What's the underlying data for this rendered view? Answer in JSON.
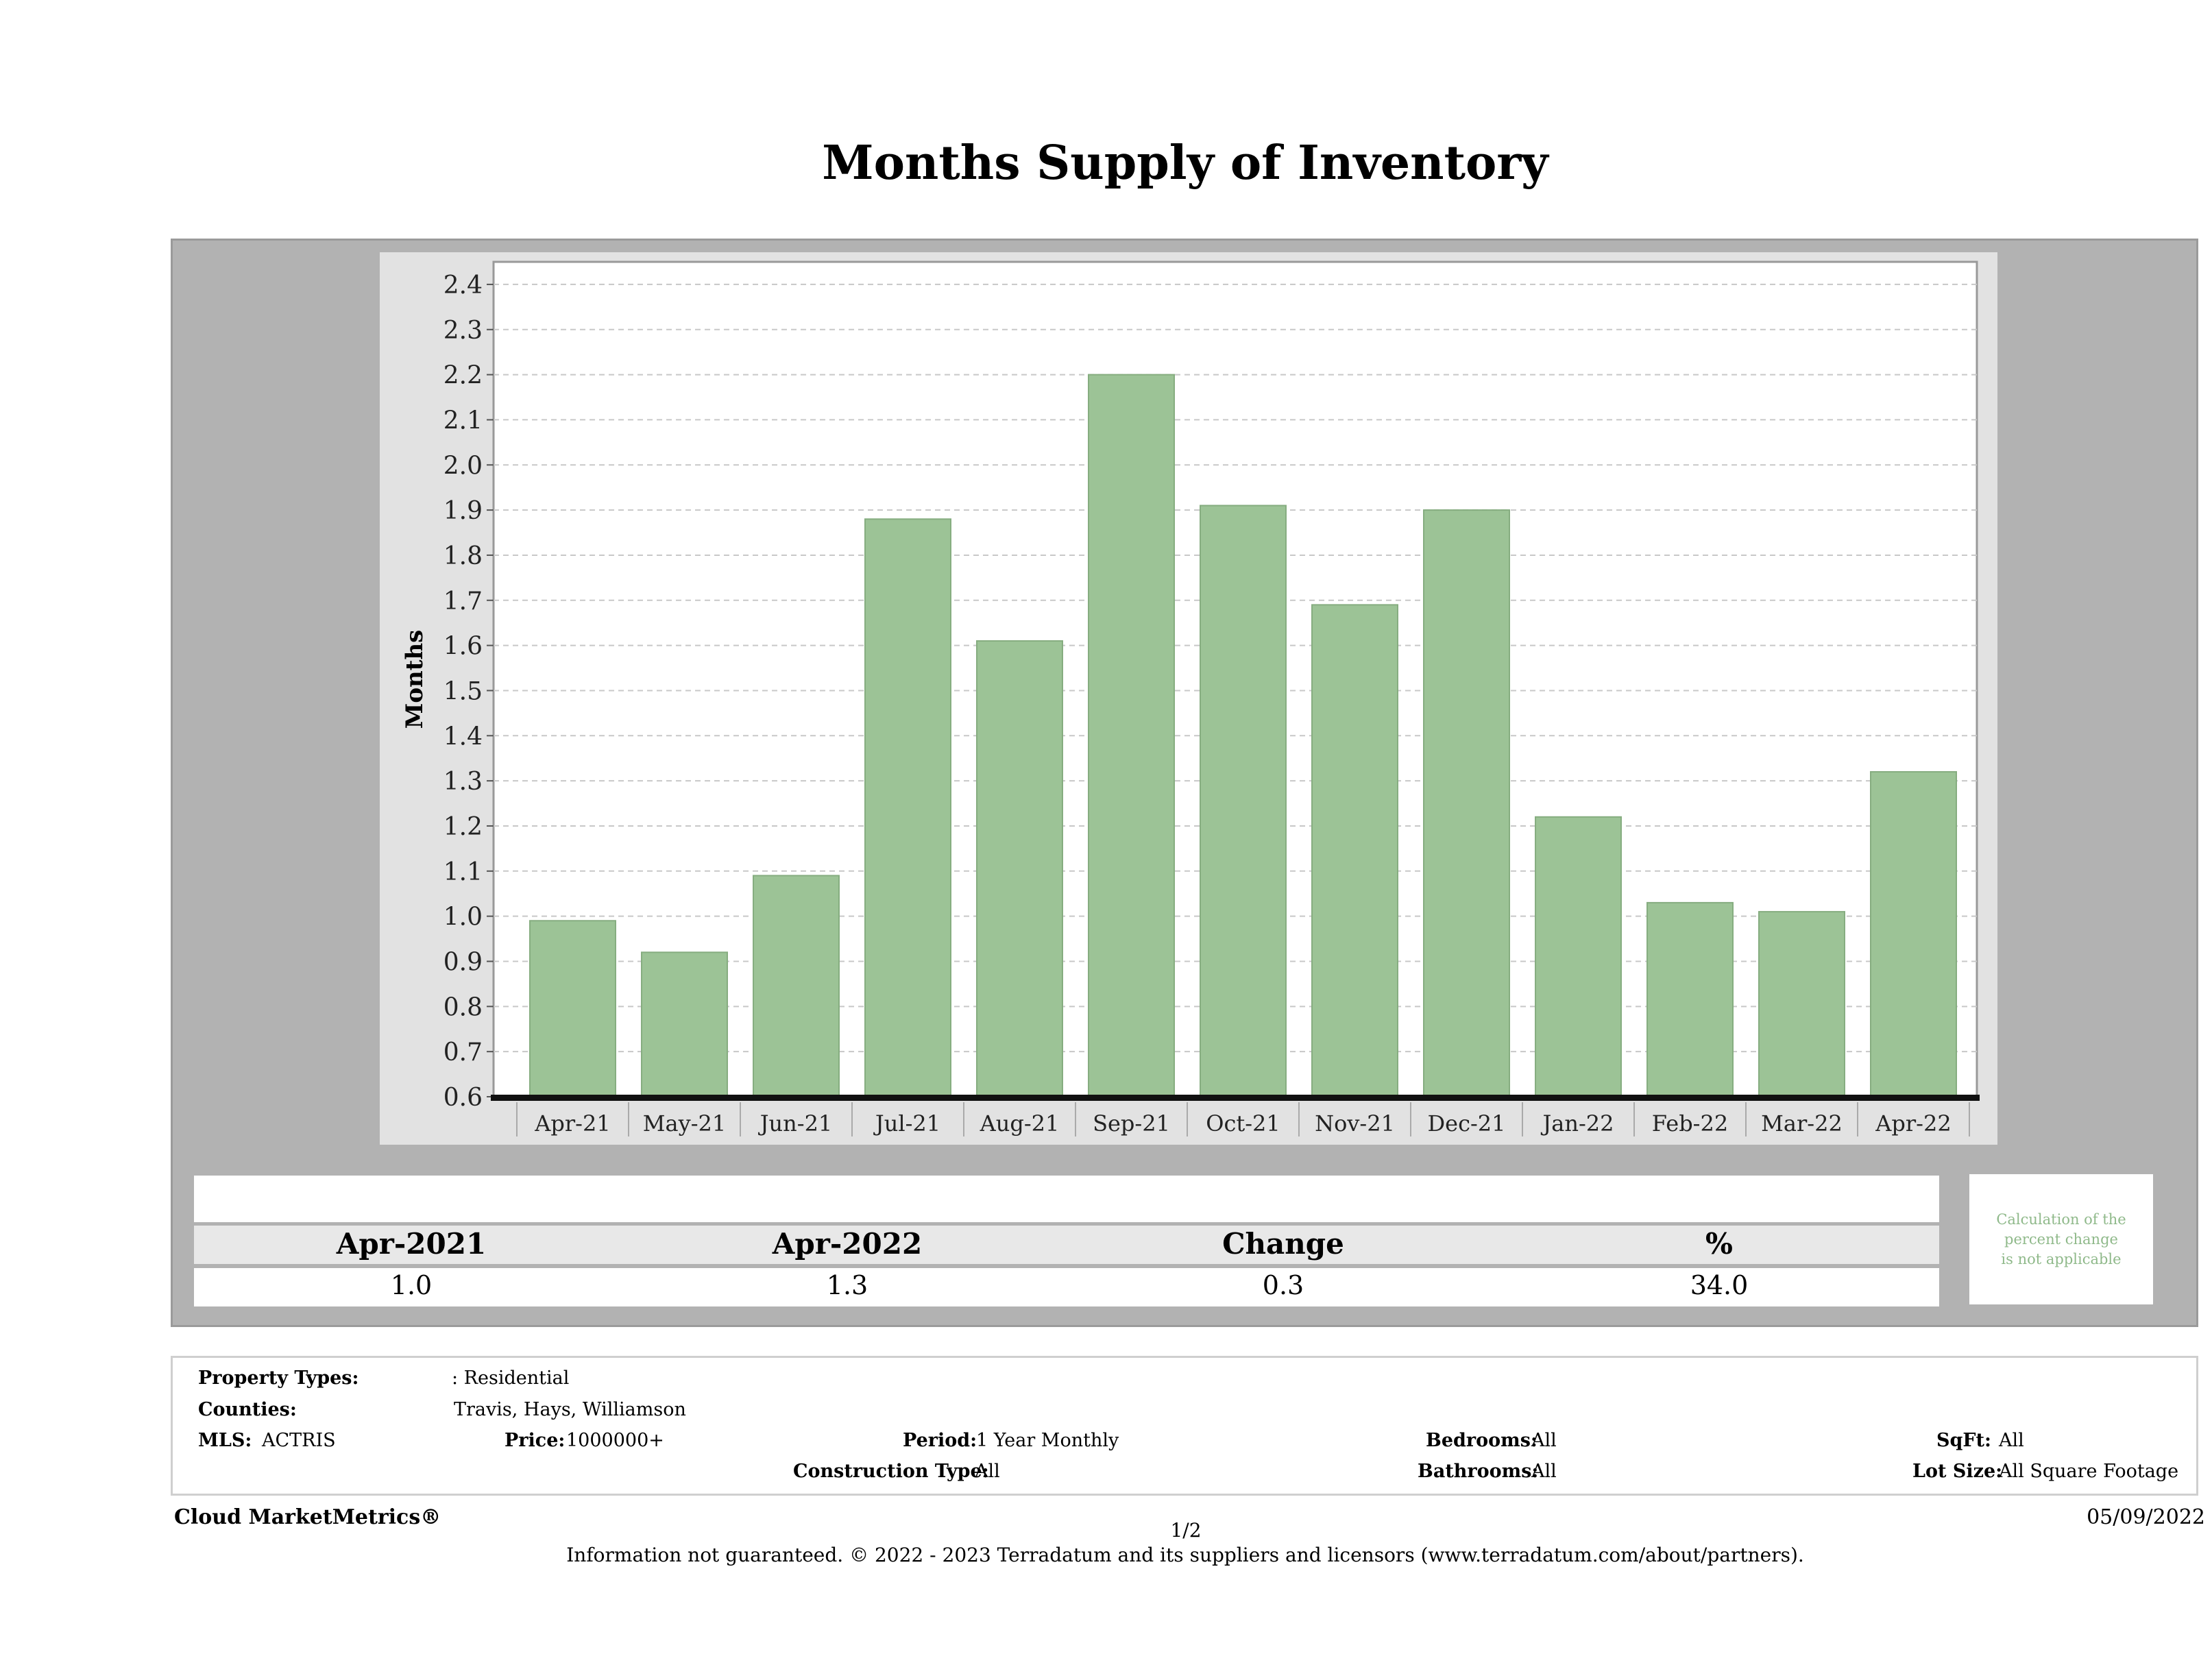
{
  "title": "Months Supply of Inventory",
  "chart_data": {
    "type": "bar",
    "ylabel": "Months",
    "xlabel": "",
    "ylim": [
      0.6,
      2.45
    ],
    "yticks": [
      "0.6",
      "0.7",
      "0.8",
      "0.9",
      "1.0",
      "1.1",
      "1.2",
      "1.3",
      "1.4",
      "1.5",
      "1.6",
      "1.7",
      "1.8",
      "1.9",
      "2.0",
      "2.1",
      "2.2",
      "2.3",
      "2.4"
    ],
    "categories": [
      "Apr-21",
      "May-21",
      "Jun-21",
      "Jul-21",
      "Aug-21",
      "Sep-21",
      "Oct-21",
      "Nov-21",
      "Dec-21",
      "Jan-22",
      "Feb-22",
      "Mar-22",
      "Apr-22"
    ],
    "values": [
      0.99,
      0.92,
      1.09,
      1.88,
      1.61,
      2.2,
      1.91,
      1.69,
      1.9,
      1.22,
      1.03,
      1.01,
      1.32
    ],
    "grid": true,
    "bar_color": "#9cc396"
  },
  "summary": {
    "headers": [
      "Apr-2021",
      "Apr-2022",
      "Change",
      "%"
    ],
    "values": [
      "1.0",
      "1.3",
      "0.3",
      "34.0"
    ],
    "note": [
      "Calculation of the",
      "percent change",
      "is not applicable"
    ]
  },
  "info": {
    "property_types_label": "Property Types:",
    "property_types_value": ": Residential",
    "counties_label": "Counties:",
    "counties_value": "Travis, Hays, Williamson",
    "mls_label": "MLS:",
    "mls_value": "ACTRIS",
    "price_label": "Price:",
    "price_value": "1000000+",
    "period_label": "Period:",
    "period_value": "1 Year Monthly",
    "construction_label": "Construction Type:",
    "construction_value": "All",
    "bedrooms_label": "Bedrooms:",
    "bedrooms_value": "All",
    "bathrooms_label": "Bathrooms:",
    "bathrooms_value": "All",
    "sqft_label": "SqFt:",
    "sqft_value": "All",
    "lotsize_label": "Lot Size:",
    "lotsize_value": "All Square Footage"
  },
  "footer": {
    "brand": "Cloud MarketMetrics®",
    "page": "1/2",
    "date": "05/09/2022",
    "disclaimer": "Information not guaranteed. © 2022 - 2023 Terradatum and its suppliers and licensors (www.terradatum.com/about/partners)."
  }
}
